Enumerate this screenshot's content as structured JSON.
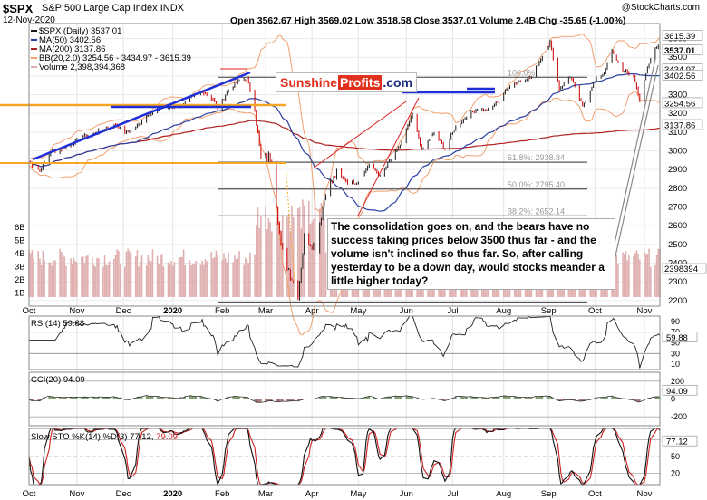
{
  "header": {
    "symbol": "$SPX",
    "name": "S&P 500 Large Cap Index",
    "exchange": "INDX",
    "date": "12-Nov-2020",
    "ohlc": "Open 3562.67  High 3569.02  Low 3518.58  Close 3537.01  Volume 2.4B  Chg -35.65 (-1.00%)",
    "credit": "@StockCharts.com"
  },
  "legend": {
    "price": "$SPX (Daily) 3537.01",
    "ma50": "MA(50) 3402.56",
    "ma200": "MA(200) 3137.86",
    "bb": "BB(20,2.0) 3254.56 - 3434.97 - 3615.39",
    "volume": "Volume 2,398,394,368"
  },
  "brand": {
    "part1": "Sunshine",
    "part2": "Profits",
    "part3": ".com"
  },
  "annotation": "The consolidation goes on, and the bears have no success taking prices below 3500 thus far - and the volume isn't inclined so thus far. So, after calling yesterday to be a down day, would stocks meander a little higher today?",
  "panels": {
    "rsi": {
      "label": "RSI(14) 59.88"
    },
    "cci": {
      "label": "CCI(20) 94.09"
    },
    "sto": {
      "label": "Slow STO %K(14) %D(3) 77.12,",
      "label_d": "79.09"
    }
  },
  "colors": {
    "price_up": "#1a1a1a",
    "price_down": "#cc0000",
    "ma50": "#2a3fa0",
    "ma200": "#b02020",
    "bb": "#f0a070",
    "volume": "#e0b0b0",
    "trend_blue": "#1f2fd8",
    "orange_line": "#f5a623",
    "fib_line": "#555555",
    "rsi_line": "#222222",
    "cci_pos": "#7a9a6a",
    "cci_neg": "#a07070",
    "sto_k": "#111111",
    "sto_d": "#cc2222"
  },
  "chart_data": [
    {
      "type": "line",
      "title": "$SPX (Daily)",
      "x_labels": [
        "Oct",
        "Nov",
        "Dec",
        "2020",
        "Feb",
        "Mar",
        "Apr",
        "May",
        "Jun",
        "Jul",
        "Aug",
        "Sep",
        "Oct",
        "Nov"
      ],
      "y_ticks": [
        2200,
        2300,
        2400,
        2500,
        2600,
        2700,
        2800,
        2900,
        3000,
        3100,
        3200,
        3300,
        3400,
        3500,
        3600
      ],
      "ylim": [
        2170,
        3680
      ],
      "volume_ticks": [
        "1B",
        "2B",
        "3B",
        "4B",
        "5B",
        "6B"
      ],
      "right_labels": [
        "3615.39",
        "3537.01",
        "3434.97",
        "3402.56",
        "3254.56",
        "3137.86",
        "2398394"
      ],
      "fibonacci": [
        {
          "label": "100.0%",
          "value": 3393
        },
        {
          "label": "61.8%: 2938.84",
          "value": 2938.84
        },
        {
          "label": "50.0%: 2795.40",
          "value": 2795.4
        },
        {
          "label": "38.2%: 2652.14",
          "value": 2652.14
        }
      ],
      "close": [
        [
          "2019-10-01",
          2940
        ],
        [
          "2019-10-08",
          2895
        ],
        [
          "2019-10-15",
          2995
        ],
        [
          "2019-10-22",
          3005
        ],
        [
          "2019-10-29",
          3040
        ],
        [
          "2019-11-05",
          3075
        ],
        [
          "2019-11-12",
          3092
        ],
        [
          "2019-11-19",
          3120
        ],
        [
          "2019-11-26",
          3140
        ],
        [
          "2019-12-03",
          3095
        ],
        [
          "2019-12-10",
          3132
        ],
        [
          "2019-12-17",
          3193
        ],
        [
          "2019-12-24",
          3225
        ],
        [
          "2019-12-31",
          3230
        ],
        [
          "2020-01-07",
          3238
        ],
        [
          "2020-01-14",
          3283
        ],
        [
          "2020-01-21",
          3320
        ],
        [
          "2020-01-28",
          3276
        ],
        [
          "2020-01-31",
          3225
        ],
        [
          "2020-02-07",
          3327
        ],
        [
          "2020-02-14",
          3380
        ],
        [
          "2020-02-19",
          3386
        ],
        [
          "2020-02-24",
          3225
        ],
        [
          "2020-02-28",
          2954
        ],
        [
          "2020-03-06",
          2972
        ],
        [
          "2020-03-12",
          2480
        ],
        [
          "2020-03-16",
          2386
        ],
        [
          "2020-03-23",
          2237
        ],
        [
          "2020-03-27",
          2541
        ],
        [
          "2020-04-03",
          2488
        ],
        [
          "2020-04-10",
          2790
        ],
        [
          "2020-04-17",
          2875
        ],
        [
          "2020-04-24",
          2836
        ],
        [
          "2020-05-01",
          2830
        ],
        [
          "2020-05-08",
          2930
        ],
        [
          "2020-05-15",
          2863
        ],
        [
          "2020-05-22",
          2955
        ],
        [
          "2020-05-29",
          3044
        ],
        [
          "2020-06-05",
          3193
        ],
        [
          "2020-06-11",
          3002
        ],
        [
          "2020-06-19",
          3098
        ],
        [
          "2020-06-26",
          3009
        ],
        [
          "2020-07-03",
          3130
        ],
        [
          "2020-07-10",
          3185
        ],
        [
          "2020-07-17",
          3224
        ],
        [
          "2020-07-24",
          3215
        ],
        [
          "2020-07-31",
          3271
        ],
        [
          "2020-08-07",
          3351
        ],
        [
          "2020-08-14",
          3373
        ],
        [
          "2020-08-21",
          3397
        ],
        [
          "2020-08-28",
          3508
        ],
        [
          "2020-09-02",
          3580
        ],
        [
          "2020-09-08",
          3331
        ],
        [
          "2020-09-15",
          3401
        ],
        [
          "2020-09-23",
          3237
        ],
        [
          "2020-09-30",
          3363
        ],
        [
          "2020-10-07",
          3419
        ],
        [
          "2020-10-12",
          3535
        ],
        [
          "2020-10-19",
          3427
        ],
        [
          "2020-10-26",
          3400
        ],
        [
          "2020-10-30",
          3270
        ],
        [
          "2020-11-04",
          3443
        ],
        [
          "2020-11-09",
          3550
        ],
        [
          "2020-11-11",
          3572
        ],
        [
          "2020-11-12",
          3537.01
        ]
      ]
    },
    {
      "type": "line",
      "title": "RSI(14)",
      "y_ticks": [
        10,
        30,
        50,
        70,
        90
      ],
      "ylim": [
        0,
        100
      ],
      "right_label": "59.88"
    },
    {
      "type": "area",
      "title": "CCI(20)",
      "y_ticks": [
        -200,
        0,
        200
      ],
      "ylim": [
        -300,
        300
      ],
      "right_label": "94.09"
    },
    {
      "type": "line",
      "title": "Slow STO %K(14) %D(3)",
      "y_ticks": [
        20,
        50,
        80
      ],
      "ylim": [
        0,
        100
      ],
      "right_label": "77.12"
    }
  ]
}
